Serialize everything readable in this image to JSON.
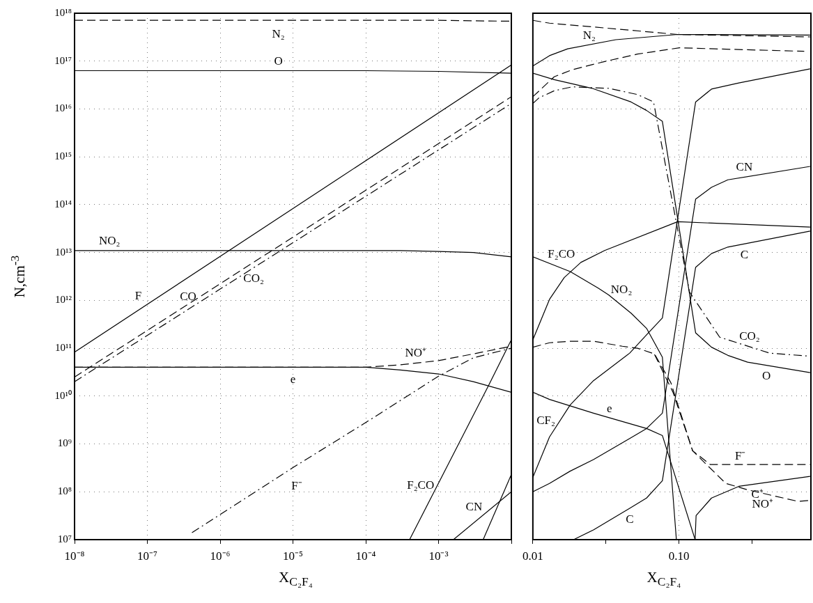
{
  "chart_data": [
    {
      "type": "line",
      "xlabel": "X$_{C₂F₄}$",
      "ylabel": "N,cm$^{-3}$",
      "log": "xy",
      "grid": true,
      "xlim": [
        1e-08,
        0.01
      ],
      "ylim": [
        10000000.0,
        1e+18
      ],
      "xticks": [
        {
          "value": 1e-08,
          "label": "10⁻⁸"
        },
        {
          "value": 1e-07,
          "label": "10⁻⁷"
        },
        {
          "value": 1e-06,
          "label": "10⁻⁶"
        },
        {
          "value": 1e-05,
          "label": "10⁻⁵"
        },
        {
          "value": 0.0001,
          "label": "10⁻⁴"
        },
        {
          "value": 0.001,
          "label": "10⁻³"
        },
        {
          "value": 0.01,
          "label": null
        }
      ],
      "yticks": [
        {
          "value": 10000000.0,
          "label": "10⁷"
        },
        {
          "value": 100000000.0,
          "label": "10⁸"
        },
        {
          "value": 1000000000.0,
          "label": "10⁹"
        },
        {
          "value": 10000000000.0,
          "label": "10¹⁰"
        },
        {
          "value": 100000000000.0,
          "label": "10¹¹"
        },
        {
          "value": 1000000000000.0,
          "label": "10¹²"
        },
        {
          "value": 10000000000000.0,
          "label": "10¹³"
        },
        {
          "value": 100000000000000.0,
          "label": "10¹⁴"
        },
        {
          "value": 1000000000000000.0,
          "label": "10¹⁵"
        },
        {
          "value": 1e+16,
          "label": "10¹⁶"
        },
        {
          "value": 1e+17,
          "label": "10¹⁷"
        },
        {
          "value": 1e+18,
          "label": "10¹⁸"
        }
      ],
      "series": [
        {
          "name": "N₂",
          "color": "#000000",
          "line_style": "dashed",
          "x": [
            1e-08,
            0.0001,
            0.001,
            0.01
          ],
          "values": [
            7.1e+17,
            7.1e+17,
            7.1e+17,
            6.8e+17
          ]
        },
        {
          "name": "O",
          "color": "#000000",
          "line_style": "solid",
          "x": [
            1e-08,
            0.0001,
            0.0003,
            0.001,
            0.01
          ],
          "values": [
            6.3e+16,
            6.3e+16,
            6.2e+16,
            6.1e+16,
            5.6e+16
          ]
        },
        {
          "name": "NO₂",
          "color": "#000000",
          "line_style": "solid",
          "x": [
            1e-08,
            0.0001,
            0.0003,
            0.001,
            0.003,
            0.01
          ],
          "values": [
            11000000000000.0,
            11000000000000.0,
            11000000000000.0,
            10500000000000.0,
            10000000000000.0,
            8100000000000.0
          ]
        },
        {
          "name": "F",
          "color": "#000000",
          "line_style": "solid",
          "x": [
            1e-08,
            1e-05,
            0.01
          ],
          "values": [
            83000000000.0,
            83000000000000.0,
            8.3e+16
          ]
        },
        {
          "name": "CO",
          "color": "#000000",
          "line_style": "dashed",
          "x": [
            1e-08,
            1e-05,
            0.01
          ],
          "values": [
            25000000000.0,
            21000000000000.0,
            1.8e+16
          ]
        },
        {
          "name": "CO₂",
          "color": "#000000",
          "line_style": "dashdot",
          "x": [
            1e-08,
            1e-05,
            0.01
          ],
          "values": [
            20000000000.0,
            16000000000000.0,
            1.3e+16
          ]
        },
        {
          "name": "NO⁺",
          "color": "#000000",
          "line_style": "dashed",
          "x": [
            1e-08,
            0.0001,
            0.0003,
            0.001,
            0.003,
            0.01
          ],
          "values": [
            40000000000.0,
            40000000000.0,
            45000000000.0,
            55000000000.0,
            76000000000.0,
            110000000000.0
          ]
        },
        {
          "name": "e",
          "color": "#000000",
          "line_style": "solid",
          "x": [
            1e-08,
            0.0001,
            0.0003,
            0.001,
            0.003,
            0.01
          ],
          "values": [
            40000000000.0,
            40000000000.0,
            35000000000.0,
            29000000000.0,
            20000000000.0,
            12000000000.0
          ]
        },
        {
          "name": "F⁻",
          "color": "#000000",
          "line_style": "dashdot",
          "x": [
            4.1e-07,
            1e-05,
            0.0001,
            0.001,
            0.003,
            0.01
          ],
          "values": [
            14000000.0,
            320000000.0,
            2800000000.0,
            26000000000.0,
            63000000000.0,
            100000000000.0
          ]
        },
        {
          "name": "F₂CO",
          "color": "#000000",
          "line_style": "solid",
          "x": [
            0.0004,
            0.0049,
            0.01
          ],
          "values": [
            10000000.0,
            17000000000.0,
            150000000000.0
          ]
        },
        {
          "name": "CN",
          "color": "#000000",
          "line_style": "solid",
          "x": [
            0.0016,
            0.01
          ],
          "values": [
            10000000.0,
            100000000.0
          ]
        },
        {
          "color": "#000000",
          "line_style": "solid",
          "x": [
            0.0041,
            0.01
          ],
          "values": [
            10000000.0,
            230000000.0
          ]
        }
      ]
    },
    {
      "type": "line",
      "xlabel": "X$_{C₂F₄}$",
      "log": "xy",
      "grid": true,
      "tick_labels": "x",
      "xlim": [
        0.01,
        0.8
      ],
      "ylim": [
        10000000.0,
        1e+18
      ],
      "xticks": [
        0.01,
        {
          "value": 0.0316,
          "label": null
        },
        {
          "value": 0.1,
          "label": "0.10"
        },
        {
          "value": 0.316,
          "label": null
        }
      ],
      "yticks": [
        10000000.0,
        100000000.0,
        1000000000.0,
        10000000000.0,
        100000000000.0,
        1000000000000.0,
        10000000000000.0,
        100000000000000.0,
        1000000000000000.0,
        1e+16,
        1e+17,
        1e+18
      ],
      "annotations": [
        {
          "text": "C",
          "x": 0.046,
          "y": 45000000.0
        }
      ],
      "series": [
        {
          "name": "N₂",
          "color": "#000000",
          "line_style": "dashed",
          "x": [
            0.01,
            0.013,
            0.037,
            0.098,
            0.79
          ],
          "values": [
            7.1e+17,
            6.2e+17,
            4.7e+17,
            3.6e+17,
            3.2e+17
          ]
        },
        {
          "color": "#000000",
          "line_style": "solid",
          "x": [
            0.01,
            0.013,
            0.0173,
            0.037,
            0.098,
            0.79
          ],
          "values": [
            7.9e+16,
            1.3e+17,
            1.8e+17,
            2.8e+17,
            3.6e+17,
            3.5e+17
          ]
        },
        {
          "color": "#000000",
          "line_style": "dashed",
          "x": [
            0.01,
            0.014,
            0.0186,
            0.031,
            0.052,
            0.101,
            0.176,
            0.72
          ],
          "values": [
            1.8e+16,
            4.7e+16,
            6.6e+16,
            9.8e+16,
            1.4e+17,
            1.9e+17,
            1.8e+17,
            1.6e+17
          ]
        },
        {
          "name": "O",
          "color": "#000000",
          "line_style": "solid",
          "x": [
            0.01,
            0.014,
            0.0254,
            0.047,
            0.06,
            0.077,
            0.13,
            0.167,
            0.216,
            0.295,
            0.79
          ],
          "values": [
            5.6e+16,
            4.1e+16,
            2.7e+16,
            1.4e+16,
            9300000000000000.0,
            5500000000000000.0,
            210000000000.0,
            105000000000.0,
            71000000000.0,
            51000000000.0,
            31000000000.0
          ]
        },
        {
          "name": "CO₂",
          "color": "#000000",
          "line_style": "dashdot",
          "x": [
            0.01,
            0.011,
            0.014,
            0.0186,
            0.033,
            0.052,
            0.067,
            0.118,
            0.19,
            0.417,
            0.79
          ],
          "values": [
            1.3e+16,
            1.7e+16,
            2.4e+16,
            2.9e+16,
            2.7e+16,
            2e+16,
            1.4e+16,
            1500000000000.0,
            170000000000.0,
            79000000000.0,
            68000000000.0
          ]
        },
        {
          "name": "CF₂",
          "color": "#000000",
          "line_style": "solid",
          "x": [
            0.01,
            0.013,
            0.018,
            0.026,
            0.046,
            0.06,
            0.077,
            0.13,
            0.167,
            0.257,
            0.79
          ],
          "values": [
            200000000.0,
            1400000000.0,
            6500000000.0,
            21000000000.0,
            79000000000.0,
            190000000000.0,
            430000000000.0,
            1.4e+16,
            2.6e+16,
            3.5e+16,
            6.9e+16
          ]
        },
        {
          "name": "CN",
          "color": "#000000",
          "line_style": "solid",
          "x": [
            0.01,
            0.013,
            0.018,
            0.026,
            0.046,
            0.06,
            0.077,
            0.13,
            0.167,
            0.216,
            0.79
          ],
          "values": [
            100000000.0,
            150000000.0,
            270000000.0,
            470000000.0,
            1300000000.0,
            2100000000.0,
            4400000000.0,
            130000000000000.0,
            230000000000000.0,
            330000000000000.0,
            630000000000000.0
          ]
        },
        {
          "name": "F₂CO",
          "color": "#000000",
          "line_style": "solid",
          "x": [
            0.01,
            0.013,
            0.0164,
            0.0213,
            0.031,
            0.098,
            0.79
          ],
          "values": [
            150000000000.0,
            1050000000000.0,
            3000000000000.0,
            6200000000000.0,
            11000000000000.0,
            44000000000000.0,
            34000000000000.0
          ]
        },
        {
          "name": "C",
          "color": "#000000",
          "line_style": "solid",
          "x": [
            0.019,
            0.026,
            0.046,
            0.06,
            0.077,
            0.13,
            0.167,
            0.216,
            0.79
          ],
          "values": [
            10000000.0,
            16000000.0,
            45000000.0,
            74000000.0,
            170000000.0,
            4900000000000.0,
            9500000000000.0,
            13000000000000.0,
            28000000000000.0
          ]
        },
        {
          "name": "NO₂",
          "color": "#000000",
          "line_style": "solid",
          "x": [
            0.01,
            0.018,
            0.028,
            0.033,
            0.047,
            0.06,
            0.077,
            0.096
          ],
          "values": [
            8100000000000.0,
            4000000000000.0,
            1800000000000.0,
            1300000000000.0,
            540000000000.0,
            260000000000.0,
            65000000000.0,
            10000000.0
          ]
        },
        {
          "name": "NO⁺",
          "color": "#000000",
          "line_style": "dashed",
          "x": [
            0.01,
            0.013,
            0.018,
            0.026,
            0.041,
            0.052,
            0.068,
            0.088,
            0.124,
            0.148,
            0.209,
            0.295,
            0.653,
            0.79
          ],
          "values": [
            105000000000.0,
            130000000000.0,
            140000000000.0,
            140000000000.0,
            110000000000.0,
            100000000000.0,
            76000000000.0,
            19000000000.0,
            720000000.0,
            420000000.0,
            150000000.0,
            110000000.0,
            63000000.0,
            66000000.0
          ]
        },
        {
          "name": "F⁻",
          "color": "#000000",
          "line_style": "dashed",
          "x": [
            0.068,
            0.091,
            0.124,
            0.164,
            0.79
          ],
          "values": [
            74000000000.0,
            12000000000.0,
            720000000.0,
            370000000.0,
            370000000.0
          ]
        },
        {
          "name": "e",
          "color": "#000000",
          "line_style": "solid",
          "x": [
            0.01,
            0.013,
            0.026,
            0.06,
            0.077,
            0.129
          ],
          "values": [
            12000000000.0,
            8500000000.0,
            4400000000.0,
            2100000000.0,
            1500000000.0,
            10000000.0
          ]
        },
        {
          "name": "C⁺",
          "color": "#000000",
          "line_style": "solid",
          "x": [
            0.129,
            0.131,
            0.167,
            0.257,
            0.79
          ],
          "values": [
            10000000.0,
            32000000.0,
            74000000.0,
            130000000.0,
            210000000.0
          ]
        }
      ]
    }
  ]
}
